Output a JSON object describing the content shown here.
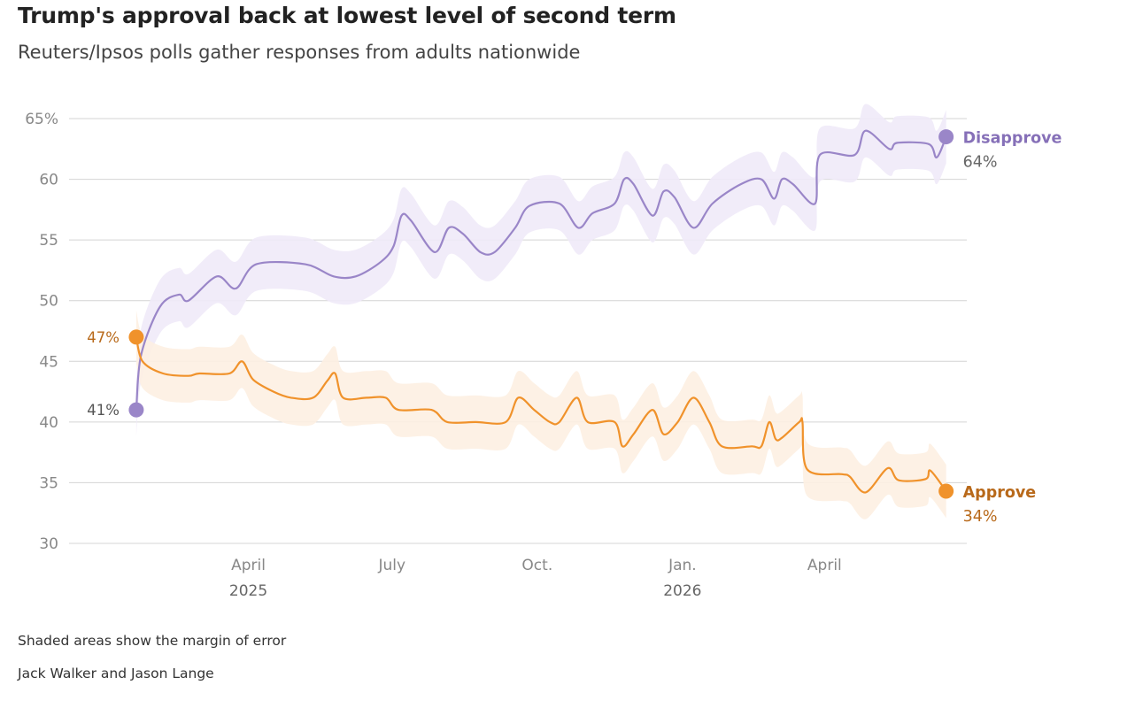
{
  "title": "Trump's approval back at lowest level of second term",
  "subtitle": "Reuters/Ipsos polls gather responses from adults nationwide",
  "note": "Shaded areas show the margin of error",
  "byline": "Jack Walker and Jason Lange",
  "colors": {
    "disapprove": "#9a86c8",
    "disapprove_band": "#efeaf8",
    "approve": "#f0922b",
    "approve_band": "#fdf0e2",
    "approve_text": "#b8691a",
    "grid": "#d4d4d4",
    "tick_text": "#888888"
  },
  "chart_data": {
    "type": "line",
    "y_ticks": [
      {
        "value": 30,
        "label": "30"
      },
      {
        "value": 35,
        "label": "35"
      },
      {
        "value": 40,
        "label": "40"
      },
      {
        "value": 45,
        "label": "45"
      },
      {
        "value": 50,
        "label": "50"
      },
      {
        "value": 55,
        "label": "55"
      },
      {
        "value": 60,
        "label": "60"
      },
      {
        "value": 65,
        "label": "65%"
      }
    ],
    "ylim": [
      30,
      65
    ],
    "xlim": [
      "2025-01-15",
      "2026-06-20"
    ],
    "x_ticks": [
      {
        "date": "2025-04-01",
        "label": "April",
        "sublabel": "2025"
      },
      {
        "date": "2025-07-01",
        "label": "July",
        "sublabel": ""
      },
      {
        "date": "2025-10-01",
        "label": "Oct.",
        "sublabel": ""
      },
      {
        "date": "2026-01-01",
        "label": "Jan.",
        "sublabel": "2026"
      },
      {
        "date": "2026-04-01",
        "label": "April",
        "sublabel": ""
      }
    ],
    "series": [
      {
        "name": "Disapprove",
        "start_label": "41%",
        "end_label": "64%",
        "margin": 2.2,
        "points": [
          [
            "2025-01-20",
            41
          ],
          [
            "2025-01-23",
            45.5
          ],
          [
            "2025-02-04",
            49.5
          ],
          [
            "2025-02-16",
            50.5
          ],
          [
            "2025-02-22",
            50
          ],
          [
            "2025-03-12",
            52
          ],
          [
            "2025-03-24",
            51
          ],
          [
            "2025-04-06",
            53
          ],
          [
            "2025-05-07",
            53
          ],
          [
            "2025-05-25",
            52
          ],
          [
            "2025-06-08",
            52
          ],
          [
            "2025-06-24",
            53.2
          ],
          [
            "2025-07-02",
            54.5
          ],
          [
            "2025-07-07",
            57
          ],
          [
            "2025-07-13",
            56.6
          ],
          [
            "2025-07-28",
            54
          ],
          [
            "2025-08-06",
            56
          ],
          [
            "2025-08-15",
            55.5
          ],
          [
            "2025-08-26",
            54
          ],
          [
            "2025-09-04",
            54
          ],
          [
            "2025-09-17",
            56
          ],
          [
            "2025-09-26",
            57.8
          ],
          [
            "2025-10-15",
            58
          ],
          [
            "2025-10-27",
            56
          ],
          [
            "2025-11-05",
            57.2
          ],
          [
            "2025-11-19",
            58
          ],
          [
            "2025-11-25",
            60
          ],
          [
            "2025-12-01",
            59.6
          ],
          [
            "2025-12-13",
            57
          ],
          [
            "2025-12-20",
            59
          ],
          [
            "2025-12-27",
            58.5
          ],
          [
            "2026-01-08",
            56
          ],
          [
            "2026-01-20",
            58
          ],
          [
            "2026-02-07",
            59.6
          ],
          [
            "2026-02-20",
            60
          ],
          [
            "2026-02-28",
            58.4
          ],
          [
            "2026-03-05",
            60
          ],
          [
            "2026-03-12",
            59.6
          ],
          [
            "2026-03-26",
            58
          ],
          [
            "2026-03-29",
            62
          ],
          [
            "2026-04-20",
            62
          ],
          [
            "2026-04-27",
            64
          ],
          [
            "2026-05-12",
            62.5
          ],
          [
            "2026-05-17",
            63
          ],
          [
            "2026-06-06",
            62.9
          ],
          [
            "2026-06-11",
            61.8
          ],
          [
            "2026-06-17",
            63.5
          ]
        ]
      },
      {
        "name": "Approve",
        "start_label": "47%",
        "end_label": "34%",
        "margin": 2.2,
        "points": [
          [
            "2025-01-20",
            47
          ],
          [
            "2025-01-24",
            45
          ],
          [
            "2025-02-06",
            44
          ],
          [
            "2025-02-22",
            43.8
          ],
          [
            "2025-03-01",
            44
          ],
          [
            "2025-03-20",
            44
          ],
          [
            "2025-03-28",
            45
          ],
          [
            "2025-04-04",
            43.5
          ],
          [
            "2025-04-17",
            42.5
          ],
          [
            "2025-04-28",
            42
          ],
          [
            "2025-05-12",
            42
          ],
          [
            "2025-05-21",
            43.4
          ],
          [
            "2025-05-26",
            44
          ],
          [
            "2025-05-31",
            42
          ],
          [
            "2025-06-15",
            42
          ],
          [
            "2025-06-27",
            42
          ],
          [
            "2025-07-05",
            41
          ],
          [
            "2025-07-26",
            41
          ],
          [
            "2025-08-05",
            40
          ],
          [
            "2025-08-23",
            40
          ],
          [
            "2025-09-11",
            40
          ],
          [
            "2025-09-19",
            42
          ],
          [
            "2025-09-29",
            41
          ],
          [
            "2025-10-09",
            40
          ],
          [
            "2025-10-15",
            40
          ],
          [
            "2025-10-26",
            42
          ],
          [
            "2025-11-02",
            40
          ],
          [
            "2025-11-19",
            40
          ],
          [
            "2025-11-24",
            38
          ],
          [
            "2025-12-01",
            39
          ],
          [
            "2025-12-13",
            41
          ],
          [
            "2025-12-20",
            39
          ],
          [
            "2025-12-29",
            40
          ],
          [
            "2026-01-08",
            42
          ],
          [
            "2026-01-18",
            40
          ],
          [
            "2026-01-26",
            38
          ],
          [
            "2026-02-14",
            38
          ],
          [
            "2026-02-20",
            38
          ],
          [
            "2026-02-25",
            40
          ],
          [
            "2026-03-01",
            38.6
          ],
          [
            "2026-03-05",
            38.7
          ],
          [
            "2026-03-16",
            40
          ],
          [
            "2026-03-18",
            40
          ],
          [
            "2026-03-21",
            36.1
          ],
          [
            "2026-04-12",
            35.7
          ],
          [
            "2026-04-17",
            35.5
          ],
          [
            "2026-04-27",
            34.2
          ],
          [
            "2026-05-11",
            36.2
          ],
          [
            "2026-05-18",
            35.2
          ],
          [
            "2026-06-04",
            35.3
          ],
          [
            "2026-06-07",
            36
          ],
          [
            "2026-06-17",
            34.3
          ]
        ]
      }
    ]
  }
}
